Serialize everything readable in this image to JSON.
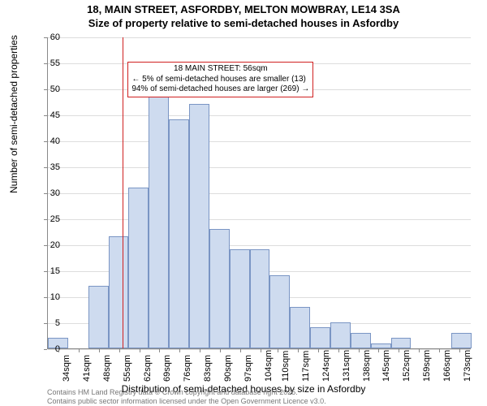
{
  "title_line1": "18, MAIN STREET, ASFORDBY, MELTON MOWBRAY, LE14 3SA",
  "title_line2": "Size of property relative to semi-detached houses in Asfordby",
  "ylabel": "Number of semi-detached properties",
  "xlabel": "Distribution of semi-detached houses by size in Asfordby",
  "attribution_line1": "Contains HM Land Registry data © Crown copyright and database right 2025.",
  "attribution_line2": "Contains public sector information licensed under the Open Government Licence v3.0.",
  "annotation": {
    "title": "18 MAIN STREET: 56sqm",
    "line1": "← 5% of semi-detached houses are smaller (13)",
    "line2": "94% of semi-detached houses are larger (269) →"
  },
  "chart": {
    "type": "histogram",
    "ylim": [
      0,
      60
    ],
    "ytick_step": 5,
    "ref_value": 56,
    "ref_color": "#d02020",
    "bar_fill": "#cedbef",
    "bar_stroke": "#7a95c4",
    "grid_color": "#dddddd",
    "background_color": "#ffffff",
    "xticks": [
      34,
      41,
      48,
      55,
      62,
      69,
      76,
      83,
      90,
      97,
      104,
      110,
      117,
      124,
      131,
      138,
      145,
      152,
      159,
      166,
      173
    ],
    "xtick_suffix": "sqm",
    "xrange": [
      30,
      177
    ],
    "bars": [
      {
        "x0": 30,
        "x1": 37,
        "y": 2
      },
      {
        "x0": 44,
        "x1": 51,
        "y": 12
      },
      {
        "x0": 51,
        "x1": 58,
        "y": 21.5
      },
      {
        "x0": 58,
        "x1": 65,
        "y": 31
      },
      {
        "x0": 65,
        "x1": 72,
        "y": 50
      },
      {
        "x0": 72,
        "x1": 79,
        "y": 44
      },
      {
        "x0": 79,
        "x1": 86,
        "y": 47
      },
      {
        "x0": 86,
        "x1": 93,
        "y": 23
      },
      {
        "x0": 93,
        "x1": 100,
        "y": 19
      },
      {
        "x0": 100,
        "x1": 107,
        "y": 19
      },
      {
        "x0": 107,
        "x1": 114,
        "y": 14
      },
      {
        "x0": 114,
        "x1": 121,
        "y": 8
      },
      {
        "x0": 121,
        "x1": 128,
        "y": 4
      },
      {
        "x0": 128,
        "x1": 135,
        "y": 5
      },
      {
        "x0": 135,
        "x1": 142,
        "y": 3
      },
      {
        "x0": 142,
        "x1": 149,
        "y": 1
      },
      {
        "x0": 149,
        "x1": 156,
        "y": 2
      },
      {
        "x0": 170,
        "x1": 177,
        "y": 3
      }
    ]
  }
}
